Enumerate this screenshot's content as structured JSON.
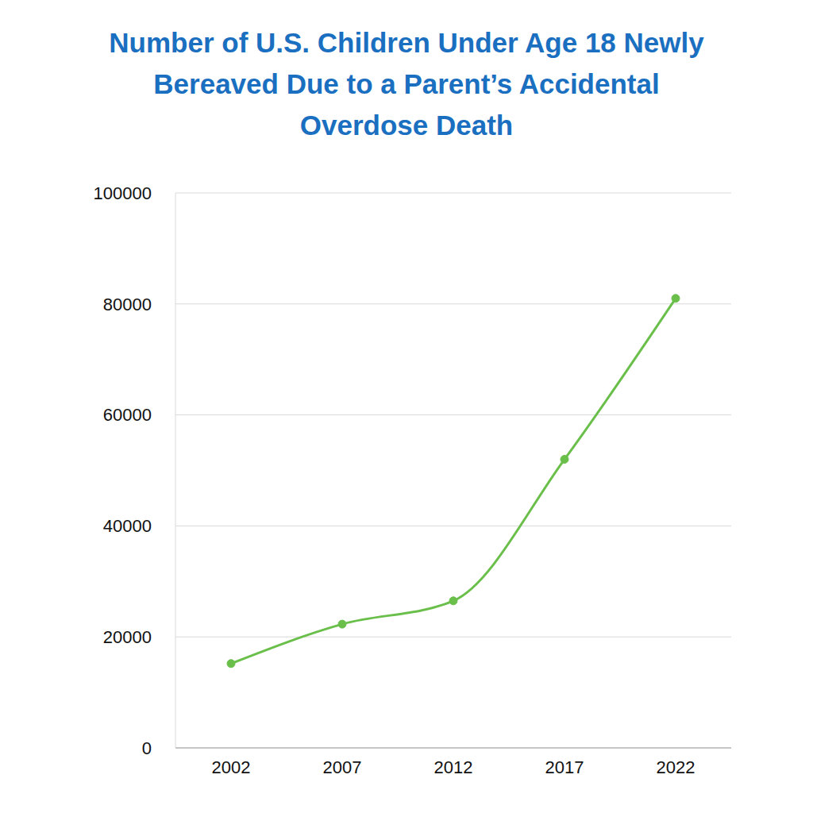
{
  "chart_data": {
    "type": "line",
    "title": "Number of U.S. Children Under Age 18 Newly Bereaved Due to a Parent’s Accidental Overdose Death",
    "categories": [
      "2002",
      "2007",
      "2012",
      "2017",
      "2022"
    ],
    "values": [
      15200,
      22300,
      26500,
      52000,
      81000
    ],
    "color": "#6abf4b",
    "ylim": [
      0,
      100000
    ],
    "yticks": [
      0,
      20000,
      40000,
      60000,
      80000,
      100000
    ],
    "grid": true,
    "marker": "circle"
  }
}
